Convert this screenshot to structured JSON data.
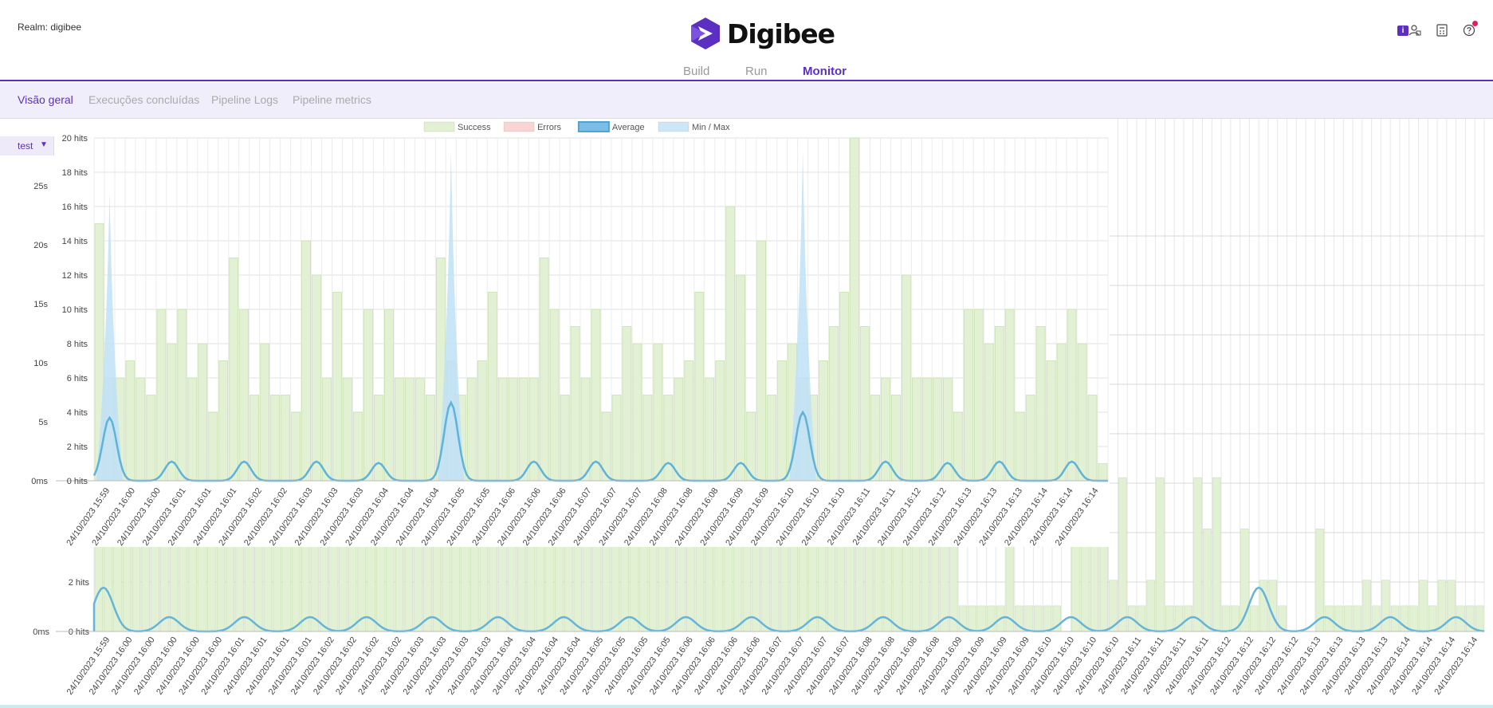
{
  "header": {
    "realm_label": "Realm: digibee",
    "logo_text": "Digibee",
    "brand_color": "#5b2fc2",
    "nav_tabs": [
      {
        "label": "Build",
        "active": false
      },
      {
        "label": "Run",
        "active": false
      },
      {
        "label": "Monitor",
        "active": true
      }
    ],
    "icons": [
      "user-account-icon",
      "calculator-icon",
      "help-icon"
    ],
    "badge_text": "i"
  },
  "subnav": {
    "items": [
      {
        "label": "Visão geral",
        "active": true
      },
      {
        "label": "Execuções concluídas",
        "active": false
      },
      {
        "label": "Pipeline Logs",
        "active": false
      },
      {
        "label": "Pipeline metrics",
        "active": false
      }
    ]
  },
  "selector": {
    "value": "test"
  },
  "chart_data": [
    {
      "type": "bar",
      "title": "",
      "legend": [
        {
          "label": "Success",
          "color": "#e2f0d3"
        },
        {
          "label": "Errors",
          "color": "#f8d5d3"
        },
        {
          "label": "Average",
          "color": "#7cbde6"
        },
        {
          "label": "Min / Max",
          "color": "#cfe6f8"
        }
      ],
      "legend_position": "top",
      "y_left_ticks": [
        "0ms",
        "5s",
        "10s",
        "15s",
        "20s",
        "25s"
      ],
      "y_right_ticks": [
        "0 hits",
        "2 hits",
        "4 hits",
        "6 hits",
        "8 hits",
        "10 hits",
        "12 hits",
        "14 hits",
        "16 hits",
        "18 hits",
        "20 hits"
      ],
      "ylim_hits": [
        0,
        20
      ],
      "grid": true,
      "x_tick_labels": [
        "24/10/2023 15:59",
        "24/10/2023 16:00",
        "24/10/2023 16:00",
        "24/10/2023 16:01",
        "24/10/2023 16:01",
        "24/10/2023 16:01",
        "24/10/2023 16:02",
        "24/10/2023 16:02",
        "24/10/2023 16:03",
        "24/10/2023 16:03",
        "24/10/2023 16:03",
        "24/10/2023 16:04",
        "24/10/2023 16:04",
        "24/10/2023 16:04",
        "24/10/2023 16:05",
        "24/10/2023 16:05",
        "24/10/2023 16:06",
        "24/10/2023 16:06",
        "24/10/2023 16:06",
        "24/10/2023 16:07",
        "24/10/2023 16:07",
        "24/10/2023 16:07",
        "24/10/2023 16:08",
        "24/10/2023 16:08",
        "24/10/2023 16:08",
        "24/10/2023 16:09",
        "24/10/2023 16:09",
        "24/10/2023 16:10",
        "24/10/2023 16:10",
        "24/10/2023 16:10",
        "24/10/2023 16:11",
        "24/10/2023 16:11",
        "24/10/2023 16:12",
        "24/10/2023 16:12",
        "24/10/2023 16:13",
        "24/10/2023 16:13",
        "24/10/2023 16:13",
        "24/10/2023 16:14",
        "24/10/2023 16:14",
        "24/10/2023 16:14"
      ],
      "success_hits": [
        15,
        6,
        6,
        7,
        6,
        5,
        10,
        8,
        10,
        6,
        8,
        4,
        7,
        13,
        10,
        5,
        8,
        5,
        5,
        4,
        14,
        12,
        6,
        11,
        6,
        4,
        10,
        5,
        10,
        6,
        6,
        6,
        5,
        13,
        7,
        5,
        6,
        7,
        11,
        6,
        6,
        6,
        6,
        13,
        10,
        5,
        9,
        6,
        10,
        4,
        5,
        9,
        8,
        5,
        8,
        5,
        6,
        7,
        11,
        6,
        7,
        16,
        12,
        4,
        14,
        5,
        7,
        8,
        6,
        5,
        7,
        9,
        11,
        20,
        9,
        5,
        6,
        5,
        12,
        6,
        6,
        6,
        6,
        4,
        10,
        10,
        8,
        9,
        10,
        4,
        5,
        9,
        7,
        8,
        10,
        8,
        5,
        1
      ],
      "average_spikes": [
        {
          "x_index": 1,
          "seconds": 4.6
        },
        {
          "x_index": 7,
          "seconds": 1.4
        },
        {
          "x_index": 14,
          "seconds": 1.4
        },
        {
          "x_index": 21,
          "seconds": 1.4
        },
        {
          "x_index": 27,
          "seconds": 1.3
        },
        {
          "x_index": 34,
          "seconds": 5.7
        },
        {
          "x_index": 42,
          "seconds": 1.4
        },
        {
          "x_index": 48,
          "seconds": 1.4
        },
        {
          "x_index": 55,
          "seconds": 1.3
        },
        {
          "x_index": 62,
          "seconds": 1.3
        },
        {
          "x_index": 68,
          "seconds": 5.0
        },
        {
          "x_index": 76,
          "seconds": 1.4
        },
        {
          "x_index": 82,
          "seconds": 1.3
        },
        {
          "x_index": 87,
          "seconds": 1.4
        },
        {
          "x_index": 94,
          "seconds": 1.4
        }
      ],
      "minmax_peaks": [
        {
          "x_index": 1,
          "seconds": 21.0
        },
        {
          "x_index": 34,
          "seconds": 24.1
        },
        {
          "x_index": 68,
          "seconds": 24.1
        }
      ]
    },
    {
      "type": "bar",
      "title": "",
      "y_left_ticks": [
        "0ms"
      ],
      "y_right_ticks": [
        "0 hits",
        "2 hits"
      ],
      "x_tick_labels": [
        "24/10/2023 15:59",
        "24/10/2023 16:00",
        "24/10/2023 16:00",
        "24/10/2023 16:00",
        "24/10/2023 16:00",
        "24/10/2023 16:00",
        "24/10/2023 16:01",
        "24/10/2023 16:01",
        "24/10/2023 16:01",
        "24/10/2023 16:01",
        "24/10/2023 16:02",
        "24/10/2023 16:02",
        "24/10/2023 16:02",
        "24/10/2023 16:02",
        "24/10/2023 16:03",
        "24/10/2023 16:03",
        "24/10/2023 16:03",
        "24/10/2023 16:03",
        "24/10/2023 16:04",
        "24/10/2023 16:04",
        "24/10/2023 16:04",
        "24/10/2023 16:04",
        "24/10/2023 16:05",
        "24/10/2023 16:05",
        "24/10/2023 16:05",
        "24/10/2023 16:05",
        "24/10/2023 16:06",
        "24/10/2023 16:06",
        "24/10/2023 16:06",
        "24/10/2023 16:06",
        "24/10/2023 16:07",
        "24/10/2023 16:07",
        "24/10/2023 16:07",
        "24/10/2023 16:07",
        "24/10/2023 16:08",
        "24/10/2023 16:08",
        "24/10/2023 16:08",
        "24/10/2023 16:08",
        "24/10/2023 16:09",
        "24/10/2023 16:09",
        "24/10/2023 16:09",
        "24/10/2023 16:09",
        "24/10/2023 16:10",
        "24/10/2023 16:10",
        "24/10/2023 16:10",
        "24/10/2023 16:10",
        "24/10/2023 16:11",
        "24/10/2023 16:11",
        "24/10/2023 16:11",
        "24/10/2023 16:11",
        "24/10/2023 16:12",
        "24/10/2023 16:12",
        "24/10/2023 16:12",
        "24/10/2023 16:12",
        "24/10/2023 16:13",
        "24/10/2023 16:13",
        "24/10/2023 16:13",
        "24/10/2023 16:13",
        "24/10/2023 16:14",
        "24/10/2023 16:14",
        "24/10/2023 16:14",
        "24/10/2023 16:14"
      ],
      "right_panel_success_hits": [
        4,
        7,
        20,
        4,
        1,
        1,
        1,
        1,
        1,
        8,
        1,
        1,
        1,
        1,
        1,
        0,
        6,
        6,
        6,
        4,
        2,
        6,
        1,
        1,
        2,
        6,
        1,
        1,
        1,
        6,
        4,
        6,
        1,
        1,
        4,
        1,
        2,
        2,
        1,
        0,
        0,
        0,
        4,
        1,
        1,
        1,
        1,
        2,
        1,
        2,
        1,
        1,
        1,
        2,
        1,
        2,
        2,
        1,
        1,
        1
      ]
    }
  ]
}
